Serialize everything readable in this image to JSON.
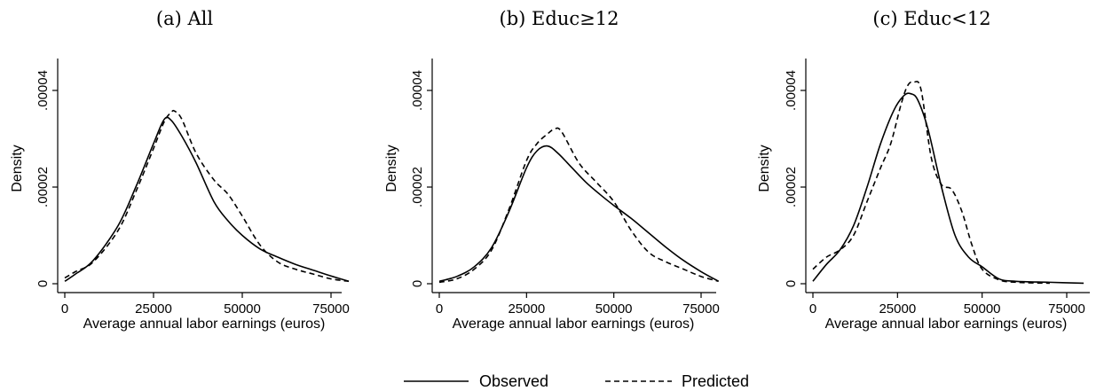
{
  "chart_data": [
    {
      "type": "line",
      "title": "(a) All",
      "xlabel": "Average annual labor earnings (euros)",
      "ylabel": "Density",
      "xlim": [
        0,
        80000
      ],
      "ylim": [
        0,
        4.5e-05
      ],
      "x_ticks": [
        0,
        25000,
        50000,
        75000
      ],
      "x_tick_labels": [
        "0",
        "25000",
        "50000",
        "75000"
      ],
      "y_ticks": [
        0,
        2e-05,
        4e-05
      ],
      "y_tick_labels": [
        "0",
        ".00002",
        ".00004"
      ],
      "grid": false,
      "series": [
        {
          "name": "Observed",
          "style": "solid",
          "x": [
            0,
            3000,
            8000,
            15000,
            20000,
            25000,
            28000,
            30000,
            33000,
            37000,
            42000,
            46000,
            50000,
            55000,
            60000,
            65000,
            70000,
            75000,
            80000
          ],
          "y": [
            5e-07,
            2e-06,
            4.8e-06,
            1.2e-05,
            2e-05,
            2.9e-05,
            3.4e-05,
            3.38e-05,
            3.05e-05,
            2.5e-05,
            1.7e-05,
            1.3e-05,
            1e-05,
            7.2e-06,
            5.5e-06,
            4e-06,
            2.8e-06,
            1.6e-06,
            5e-07
          ]
        },
        {
          "name": "Predicted",
          "style": "dashed",
          "x": [
            0,
            3000,
            8000,
            15000,
            20000,
            25000,
            28000,
            30000,
            31000,
            33000,
            37000,
            42000,
            46000,
            50000,
            55000,
            60000,
            65000,
            70000,
            75000,
            80000
          ],
          "y": [
            1.2e-06,
            2.5e-06,
            4.5e-06,
            1.1e-05,
            1.9e-05,
            2.8e-05,
            3.35e-05,
            3.55e-05,
            3.57e-05,
            3.4e-05,
            2.7e-05,
            2.15e-05,
            1.85e-05,
            1.4e-05,
            8e-06,
            4.5e-06,
            3e-06,
            2e-06,
            1e-06,
            5e-07
          ]
        }
      ]
    },
    {
      "type": "line",
      "title": "(b) Educ≥12",
      "xlabel": "Average annual labor earnings (euros)",
      "ylabel": "Density",
      "xlim": [
        0,
        80000
      ],
      "ylim": [
        0,
        4.5e-05
      ],
      "x_ticks": [
        0,
        25000,
        50000,
        75000
      ],
      "x_tick_labels": [
        "0",
        "25000",
        "50000",
        "75000"
      ],
      "y_ticks": [
        0,
        2e-05,
        4e-05
      ],
      "y_tick_labels": [
        "0",
        ".00002",
        ".00004"
      ],
      "grid": false,
      "series": [
        {
          "name": "Observed",
          "style": "solid",
          "x": [
            0,
            5000,
            10000,
            15000,
            20000,
            25000,
            28000,
            31000,
            34000,
            38000,
            42000,
            46000,
            50000,
            55000,
            60000,
            65000,
            70000,
            75000,
            80000
          ],
          "y": [
            5e-07,
            1.5e-06,
            3.5e-06,
            7.5e-06,
            1.5e-05,
            2.4e-05,
            2.75e-05,
            2.85e-05,
            2.7e-05,
            2.4e-05,
            2.1e-05,
            1.85e-05,
            1.62e-05,
            1.35e-05,
            1.05e-05,
            7.5e-06,
            4.8e-06,
            2.5e-06,
            5e-07
          ]
        },
        {
          "name": "Predicted",
          "style": "dashed",
          "x": [
            0,
            5000,
            10000,
            15000,
            20000,
            25000,
            28000,
            31000,
            33000,
            35000,
            40000,
            45000,
            50000,
            55000,
            60000,
            65000,
            70000,
            75000,
            80000
          ],
          "y": [
            3e-07,
            1e-06,
            3e-06,
            7e-06,
            1.55e-05,
            2.55e-05,
            2.9e-05,
            3.1e-05,
            3.2e-05,
            3.15e-05,
            2.5e-05,
            2.1e-05,
            1.7e-05,
            1.1e-05,
            6.5e-06,
            4.5e-06,
            3e-06,
            1.5e-06,
            5e-07
          ]
        }
      ]
    },
    {
      "type": "line",
      "title": "(c) Educ<12",
      "xlabel": "Average annual labor earnings (euros)",
      "ylabel": "Density",
      "xlim": [
        0,
        80000
      ],
      "ylim": [
        0,
        4.5e-05
      ],
      "x_ticks": [
        0,
        25000,
        50000,
        75000
      ],
      "x_tick_labels": [
        "0",
        "25000",
        "50000",
        "75000"
      ],
      "y_ticks": [
        0,
        2e-05,
        4e-05
      ],
      "y_tick_labels": [
        "0",
        ".00002",
        ".00004"
      ],
      "grid": false,
      "series": [
        {
          "name": "Observed",
          "style": "solid",
          "x": [
            0,
            4000,
            8000,
            12000,
            16000,
            20000,
            24000,
            27000,
            29000,
            31000,
            34000,
            38000,
            42000,
            46000,
            50000,
            55000,
            60000,
            70000,
            80000
          ],
          "y": [
            5e-07,
            4e-06,
            7e-06,
            1.2e-05,
            2e-05,
            2.9e-05,
            3.6e-05,
            3.9e-05,
            3.93e-05,
            3.8e-05,
            3.2e-05,
            2e-05,
            1e-05,
            5.5e-06,
            3.5e-06,
            1e-06,
            5e-07,
            3e-07,
            1e-07
          ]
        },
        {
          "name": "Predicted",
          "style": "dashed",
          "x": [
            0,
            4000,
            8000,
            12000,
            16000,
            20000,
            23000,
            26000,
            28000,
            30000,
            32000,
            35000,
            38000,
            41000,
            44000,
            47000,
            50000,
            55000,
            60000,
            70000
          ],
          "y": [
            3e-06,
            5.5e-06,
            7e-06,
            1e-05,
            1.7e-05,
            2.4e-05,
            2.9e-05,
            3.7e-05,
            4.1e-05,
            4.18e-05,
            4e-05,
            2.6e-05,
            2.05e-05,
            1.95e-05,
            1.5e-05,
            8e-06,
            3e-06,
            8e-07,
            3e-07,
            1e-07
          ]
        }
      ]
    }
  ],
  "legend": {
    "position": "bottom-center",
    "items": [
      {
        "label": "Observed",
        "style": "solid"
      },
      {
        "label": "Predicted",
        "style": "dashed"
      }
    ]
  }
}
